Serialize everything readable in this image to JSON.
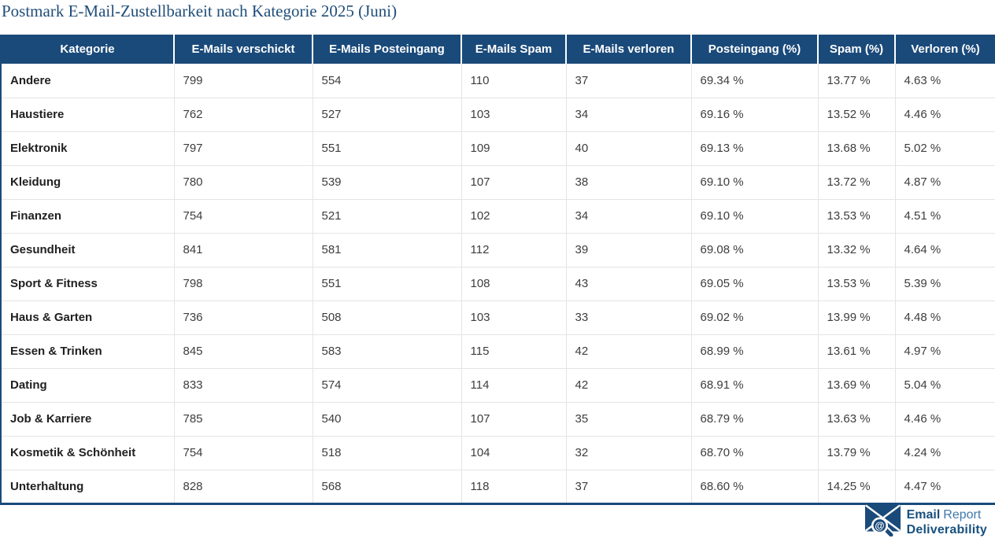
{
  "title": "Postmark E-Mail-Zustellbarkeit nach Kategorie 2025 (Juni)",
  "table": {
    "columns": [
      "Kategorie",
      "E-Mails verschickt",
      "E-Mails Posteingang",
      "E-Mails Spam",
      "E-Mails verloren",
      "Posteingang (%)",
      "Spam (%)",
      "Verloren (%)"
    ],
    "rows": [
      [
        "Andere",
        "799",
        "554",
        "110",
        "37",
        "69.34 %",
        "13.77 %",
        "4.63 %"
      ],
      [
        "Haustiere",
        "762",
        "527",
        "103",
        "34",
        "69.16 %",
        "13.52 %",
        "4.46 %"
      ],
      [
        "Elektronik",
        "797",
        "551",
        "109",
        "40",
        "69.13 %",
        "13.68 %",
        "5.02 %"
      ],
      [
        "Kleidung",
        "780",
        "539",
        "107",
        "38",
        "69.10 %",
        "13.72 %",
        "4.87 %"
      ],
      [
        "Finanzen",
        "754",
        "521",
        "102",
        "34",
        "69.10 %",
        "13.53 %",
        "4.51 %"
      ],
      [
        "Gesundheit",
        "841",
        "581",
        "112",
        "39",
        "69.08 %",
        "13.32 %",
        "4.64 %"
      ],
      [
        "Sport & Fitness",
        "798",
        "551",
        "108",
        "43",
        "69.05 %",
        "13.53 %",
        "5.39 %"
      ],
      [
        "Haus & Garten",
        "736",
        "508",
        "103",
        "33",
        "69.02 %",
        "13.99 %",
        "4.48 %"
      ],
      [
        "Essen & Trinken",
        "845",
        "583",
        "115",
        "42",
        "68.99 %",
        "13.61 %",
        "4.97 %"
      ],
      [
        "Dating",
        "833",
        "574",
        "114",
        "42",
        "68.91 %",
        "13.69 %",
        "5.04 %"
      ],
      [
        "Job & Karriere",
        "785",
        "540",
        "107",
        "35",
        "68.79 %",
        "13.63 %",
        "4.46 %"
      ],
      [
        "Kosmetik & Schönheit",
        "754",
        "518",
        "104",
        "32",
        "68.70 %",
        "13.79 %",
        "4.24 %"
      ],
      [
        "Unterhaltung",
        "828",
        "568",
        "118",
        "37",
        "68.60 %",
        "14.25 %",
        "4.47 %"
      ]
    ]
  },
  "chart_data": {
    "type": "table",
    "title": "Postmark E-Mail-Zustellbarkeit nach Kategorie 2025 (Juni)",
    "columns": [
      "Kategorie",
      "E-Mails verschickt",
      "E-Mails Posteingang",
      "E-Mails Spam",
      "E-Mails verloren",
      "Posteingang (%)",
      "Spam (%)",
      "Verloren (%)"
    ],
    "rows": [
      [
        "Andere",
        799,
        554,
        110,
        37,
        69.34,
        13.77,
        4.63
      ],
      [
        "Haustiere",
        762,
        527,
        103,
        34,
        69.16,
        13.52,
        4.46
      ],
      [
        "Elektronik",
        797,
        551,
        109,
        40,
        69.13,
        13.68,
        5.02
      ],
      [
        "Kleidung",
        780,
        539,
        107,
        38,
        69.1,
        13.72,
        4.87
      ],
      [
        "Finanzen",
        754,
        521,
        102,
        34,
        69.1,
        13.53,
        4.51
      ],
      [
        "Gesundheit",
        841,
        581,
        112,
        39,
        69.08,
        13.32,
        4.64
      ],
      [
        "Sport & Fitness",
        798,
        551,
        108,
        43,
        69.05,
        13.53,
        5.39
      ],
      [
        "Haus & Garten",
        736,
        508,
        103,
        33,
        69.02,
        13.99,
        4.48
      ],
      [
        "Essen & Trinken",
        845,
        583,
        115,
        42,
        68.99,
        13.61,
        4.97
      ],
      [
        "Dating",
        833,
        574,
        114,
        42,
        68.91,
        13.69,
        5.04
      ],
      [
        "Job & Karriere",
        785,
        540,
        107,
        35,
        68.79,
        13.63,
        4.46
      ],
      [
        "Kosmetik & Schönheit",
        754,
        518,
        104,
        32,
        68.7,
        13.79,
        4.24
      ],
      [
        "Unterhaltung",
        828,
        568,
        118,
        37,
        68.6,
        14.25,
        4.47
      ]
    ],
    "percent_unit_suffix": " %"
  },
  "brand": {
    "line1_bold": "Email",
    "line1_light": "Report",
    "line2": "Deliverability",
    "icon": "envelope-magnifier-at-icon"
  },
  "colors": {
    "header_bg": "#1a4a7a",
    "title_text": "#1f4e79",
    "body_text": "#3d3d3d",
    "category_text": "#212121",
    "grid_line": "#e4e4e4",
    "brand_dark_blue": "#17517e",
    "brand_light_blue": "#3d79ab"
  }
}
